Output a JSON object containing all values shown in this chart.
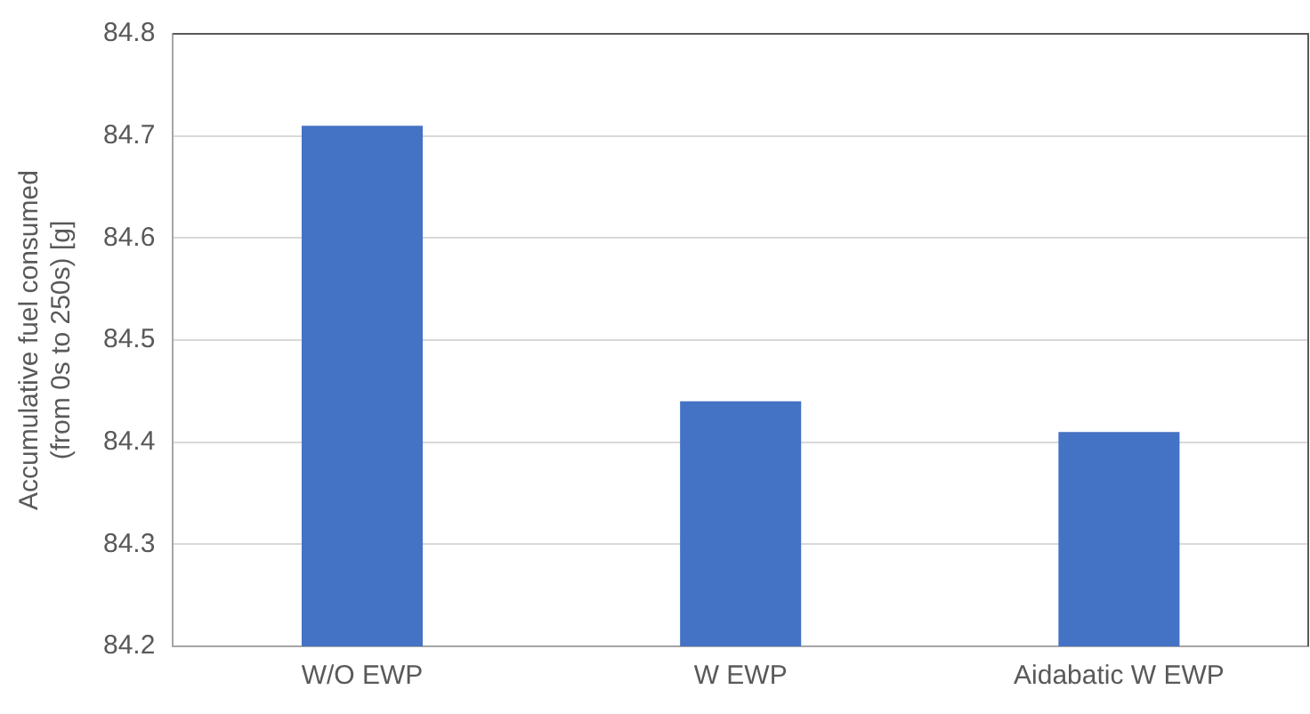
{
  "chart_data": {
    "type": "bar",
    "ylabel": "Accumulative fuel consumed\n(from 0s to 250s) [g]",
    "categories": [
      "W/O EWP",
      "W EWP",
      "Aidabatic W EWP"
    ],
    "values": [
      84.71,
      84.44,
      84.41
    ],
    "color": "#4472c4",
    "ylim": [
      84.2,
      84.8
    ],
    "yticks": [
      84.2,
      84.3,
      84.4,
      84.5,
      84.6,
      84.7,
      84.8
    ],
    "grid": "y",
    "legend": false
  }
}
